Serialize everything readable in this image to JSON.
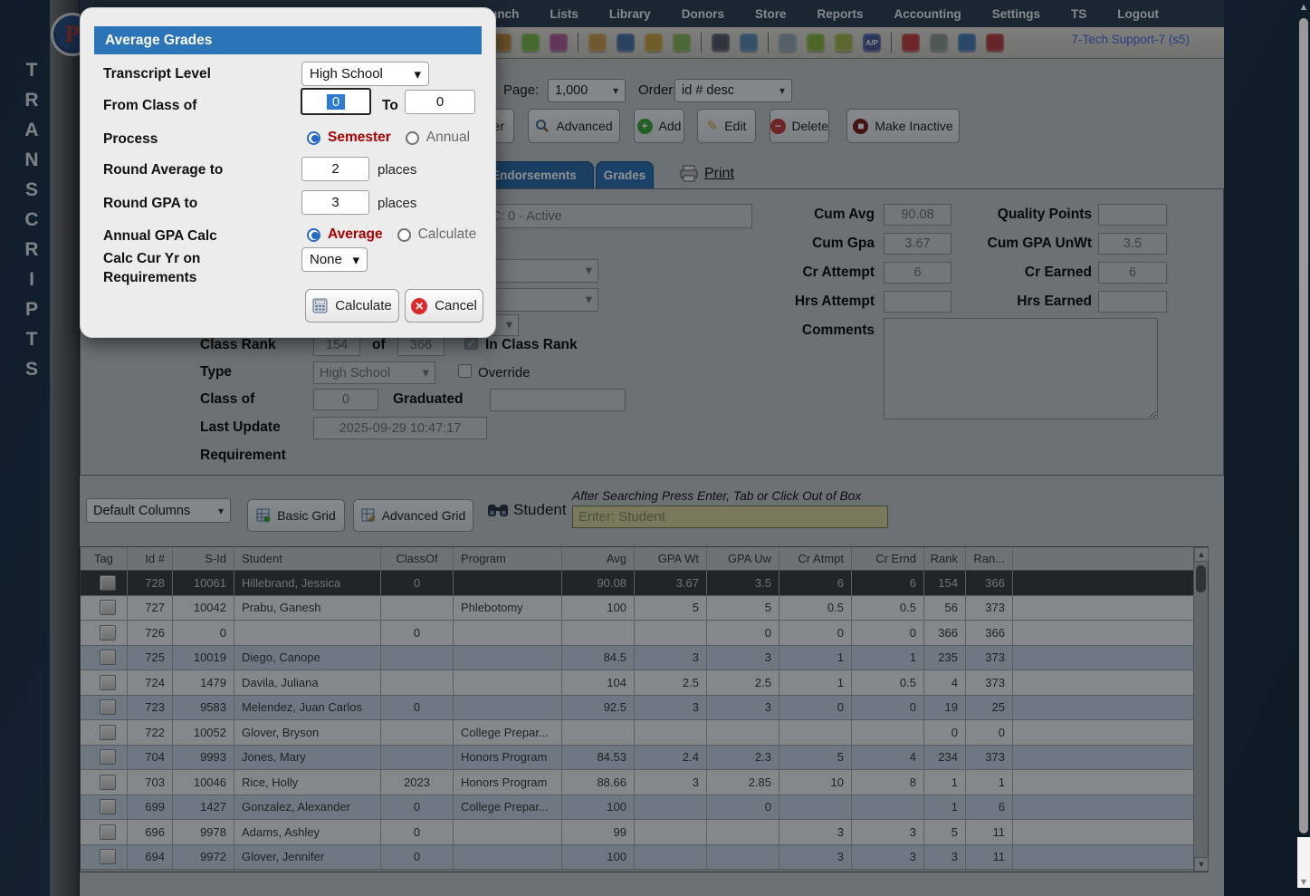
{
  "window": {
    "user_info": "7-Tech Support-7 (s5)"
  },
  "sidebar": {
    "vertical_label": "TRANSCRIPTS"
  },
  "navbar": {
    "partial_item": "s",
    "items": [
      "Lunch",
      "Lists",
      "Library",
      "Donors",
      "Store",
      "Reports",
      "Accounting",
      "Settings",
      "TS",
      "Logout"
    ]
  },
  "toolbar": {
    "icons": [
      {
        "name": "clipboard-person-icon",
        "color": "#c08a3e"
      },
      {
        "name": "tickets-icon",
        "color": "#7ab648"
      },
      {
        "name": "family-icon",
        "color": "#b05a9a"
      },
      {
        "sep": true
      },
      {
        "name": "lunch-icon",
        "color": "#c89a50"
      },
      {
        "name": "binder-icon",
        "color": "#4a6fa5"
      },
      {
        "name": "horn-icon",
        "color": "#c8a23e"
      },
      {
        "name": "folder-export-icon",
        "color": "#8ab45a"
      },
      {
        "sep": true
      },
      {
        "name": "staff-icon",
        "color": "#555a66"
      },
      {
        "name": "clock-icon",
        "color": "#5a8ab4"
      },
      {
        "sep": true
      },
      {
        "name": "ledger-icon",
        "color": "#9aa4b4"
      },
      {
        "name": "payment-card-icon",
        "color": "#86b43e"
      },
      {
        "name": "print-check-icon",
        "color": "#a0b44e"
      },
      {
        "name": "ap-icon",
        "color": "#4a5a9a",
        "label": "A/P"
      },
      {
        "sep": true
      },
      {
        "name": "pdf-icon",
        "color": "#c43e3e"
      },
      {
        "name": "cash-register-icon",
        "color": "#8a9a8a"
      },
      {
        "name": "help-icon",
        "color": "#4a7ab4"
      },
      {
        "name": "alert-icon",
        "color": "#b43e3e"
      }
    ]
  },
  "list_controls": {
    "page_label": "Page:",
    "page_value": "1,000",
    "order_label": "Order:",
    "order_value": "id # desc",
    "partial_button_label": "er",
    "buttons": {
      "advanced": "Advanced",
      "add": "Add",
      "edit": "Edit",
      "delete": "Delete",
      "make_inactive": "Make Inactive"
    }
  },
  "tabs": {
    "endorsements": "Endorsements",
    "grades": "Grades",
    "active": "Grades",
    "print_label": "Print"
  },
  "student_panel": {
    "name_value": "Hillebrand, Jessica - C: 0 - Active",
    "class_rank": {
      "label": "Class Rank",
      "rank": "154",
      "of_label": "of",
      "total": "366",
      "in_class_rank_label": "In Class Rank",
      "in_class_rank_checked": true
    },
    "type": {
      "label": "Type",
      "value": "High School",
      "override_label": "Override",
      "override_checked": false
    },
    "class_of": {
      "label": "Class of",
      "value": "0",
      "graduated_label": "Graduated",
      "graduated_value": ""
    },
    "last_update": {
      "label": "Last Update",
      "value": "2025-09-29 10:47:17"
    },
    "requirement_label": "Requirement",
    "stats": [
      {
        "label": "Cum Avg",
        "value": "90.08"
      },
      {
        "label": "Quality Points",
        "value": ""
      },
      {
        "label": "Cum Gpa",
        "value": "3.67"
      },
      {
        "label": "Cum GPA UnWt",
        "value": "3.5"
      },
      {
        "label": "Cr Attempt",
        "value": "6"
      },
      {
        "label": "Cr Earned",
        "value": "6"
      },
      {
        "label": "Hrs Attempt",
        "value": ""
      },
      {
        "label": "Hrs Earned",
        "value": ""
      }
    ],
    "comments_label": "Comments"
  },
  "grid_controls": {
    "columns_select": "Default Columns",
    "basic_grid_label": "Basic Grid",
    "advanced_grid_label": "Advanced Grid",
    "student_label": "Student",
    "search_hint": "After Searching Press Enter, Tab or Click Out of Box",
    "search_placeholder": "Enter: Student"
  },
  "table": {
    "headers": [
      "Tag",
      "Id #",
      "S-Id",
      "Student",
      "ClassOf",
      "Program",
      "Avg",
      "GPA Wt",
      "GPA Uw",
      "Cr Atmpt",
      "Cr Ernd",
      "Rank",
      "Ran..."
    ],
    "selected_row_index": 0,
    "rows": [
      [
        "728",
        "10061",
        "Hillebrand, Jessica",
        "0",
        "",
        "90.08",
        "3.67",
        "3.5",
        "6",
        "6",
        "154",
        "366"
      ],
      [
        "727",
        "10042",
        "Prabu, Ganesh",
        "",
        "Phlebotomy",
        "100",
        "5",
        "5",
        "0.5",
        "0.5",
        "56",
        "373"
      ],
      [
        "726",
        "0",
        "",
        "0",
        "",
        "",
        "",
        "0",
        "0",
        "0",
        "366",
        "366"
      ],
      [
        "725",
        "10019",
        "Diego, Canope",
        "",
        "",
        "84.5",
        "3",
        "3",
        "1",
        "1",
        "235",
        "373"
      ],
      [
        "724",
        "1479",
        "Davila, Juliana",
        "",
        "",
        "104",
        "2.5",
        "2.5",
        "1",
        "0.5",
        "4",
        "373"
      ],
      [
        "723",
        "9583",
        "Melendez, Juan Carlos",
        "0",
        "",
        "92.5",
        "3",
        "3",
        "0",
        "0",
        "19",
        "25"
      ],
      [
        "722",
        "10052",
        "Glover, Bryson",
        "",
        "College Prepar...",
        "",
        "",
        "",
        "",
        "",
        "0",
        "0"
      ],
      [
        "704",
        "9993",
        "Jones, Mary",
        "",
        "Honors Program",
        "84.53",
        "2.4",
        "2.3",
        "5",
        "4",
        "234",
        "373"
      ],
      [
        "703",
        "10046",
        "Rice, Holly",
        "2023",
        "Honors Program",
        "88.66",
        "3",
        "2.85",
        "10",
        "8",
        "1",
        "1"
      ],
      [
        "699",
        "1427",
        "Gonzalez, Alexander",
        "0",
        "College Prepar...",
        "100",
        "",
        "0",
        "",
        "",
        "1",
        "6"
      ],
      [
        "696",
        "9978",
        "Adams, Ashley",
        "0",
        "",
        "99",
        "",
        "",
        "3",
        "3",
        "5",
        "11"
      ],
      [
        "694",
        "9972",
        "Glover, Jennifer",
        "0",
        "",
        "100",
        "",
        "",
        "3",
        "3",
        "3",
        "11"
      ]
    ]
  },
  "dialog": {
    "title": "Average Grades",
    "fields": {
      "transcript_level": {
        "label": "Transcript Level",
        "value": "High School"
      },
      "from_class_of": {
        "label": "From Class of",
        "value": "0",
        "to_label": "To",
        "to_value": "0"
      },
      "process": {
        "label": "Process",
        "options": [
          "Semester",
          "Annual"
        ],
        "selected": "Semester"
      },
      "round_average": {
        "label": "Round Average to",
        "value": "2",
        "suffix": "places"
      },
      "round_gpa": {
        "label": "Round GPA to",
        "value": "3",
        "suffix": "places"
      },
      "annual_gpa_calc": {
        "label": "Annual GPA Calc",
        "options": [
          "Average",
          "Calculate"
        ],
        "selected": "Average"
      },
      "calc_cur_yr": {
        "label_line1": "Calc Cur Yr on",
        "label_line2": "Requirements",
        "value": "None"
      }
    },
    "buttons": {
      "calculate": "Calculate",
      "cancel": "Cancel"
    }
  },
  "colors": {
    "dialog_header": "#2b74b8",
    "radio_label": "#aa0000",
    "tab_active": "#2d72b6",
    "user_text": "#4a66e0",
    "search_bg": "#d8d5a0",
    "selected_row": "#3a3d40"
  }
}
